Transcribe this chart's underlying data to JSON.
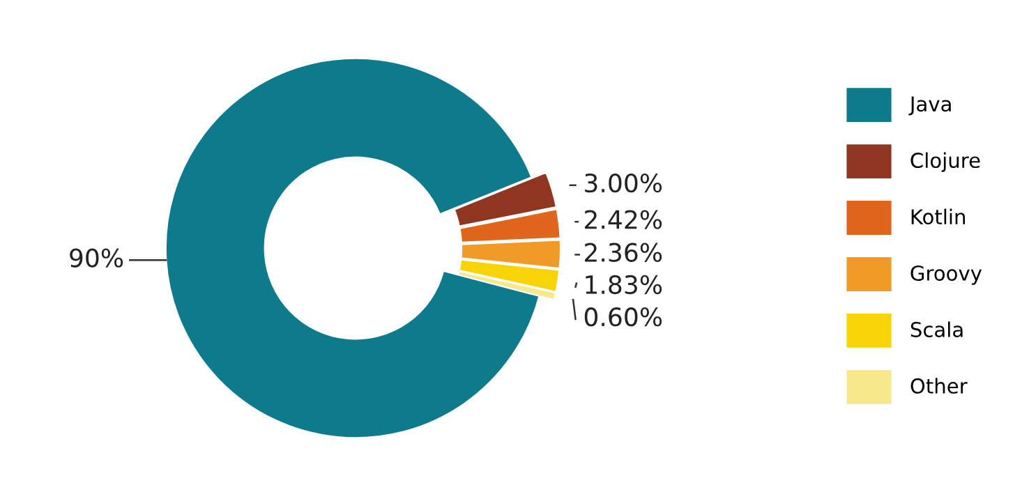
{
  "chart_data": {
    "type": "donut",
    "categories": [
      "Java",
      "Clojure",
      "Kotlin",
      "Groovy",
      "Scala",
      "Other"
    ],
    "values": [
      90,
      3.0,
      2.42,
      2.36,
      1.83,
      0.6
    ],
    "value_labels": [
      "90%",
      "3.00%",
      "2.42%",
      "2.36%",
      "1.83%",
      "0.60%"
    ],
    "colors": [
      "#0e7b8c",
      "#8f3520",
      "#e0661e",
      "#f09a28",
      "#f7d308",
      "#f8e88c"
    ],
    "legend": "right"
  }
}
